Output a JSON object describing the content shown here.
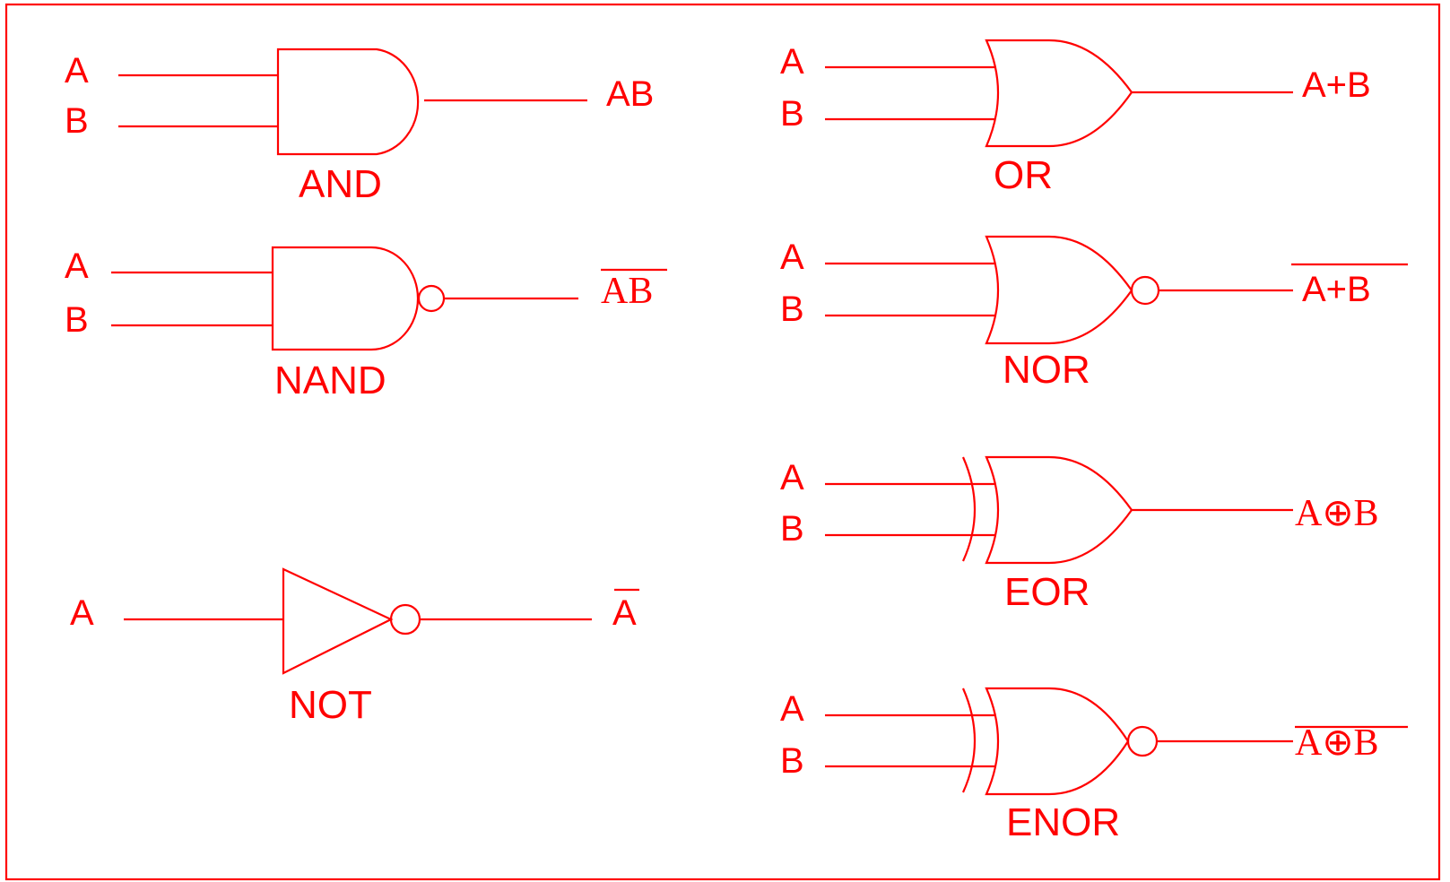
{
  "inputs": {
    "a": "A",
    "b": "B"
  },
  "gates": {
    "and": {
      "name": "AND",
      "output": "AB"
    },
    "nand": {
      "name": "NAND",
      "output": "AB"
    },
    "not": {
      "name": "NOT",
      "output": "A"
    },
    "or": {
      "name": "OR",
      "output": "A+B"
    },
    "nor": {
      "name": "NOR",
      "output": "A+B"
    },
    "eor": {
      "name": "EOR",
      "output": "A⊕B"
    },
    "enor": {
      "name": "ENOR",
      "output": "A⊕B"
    }
  },
  "colors": {
    "line": "#ff0000",
    "background": "#ffffff"
  }
}
